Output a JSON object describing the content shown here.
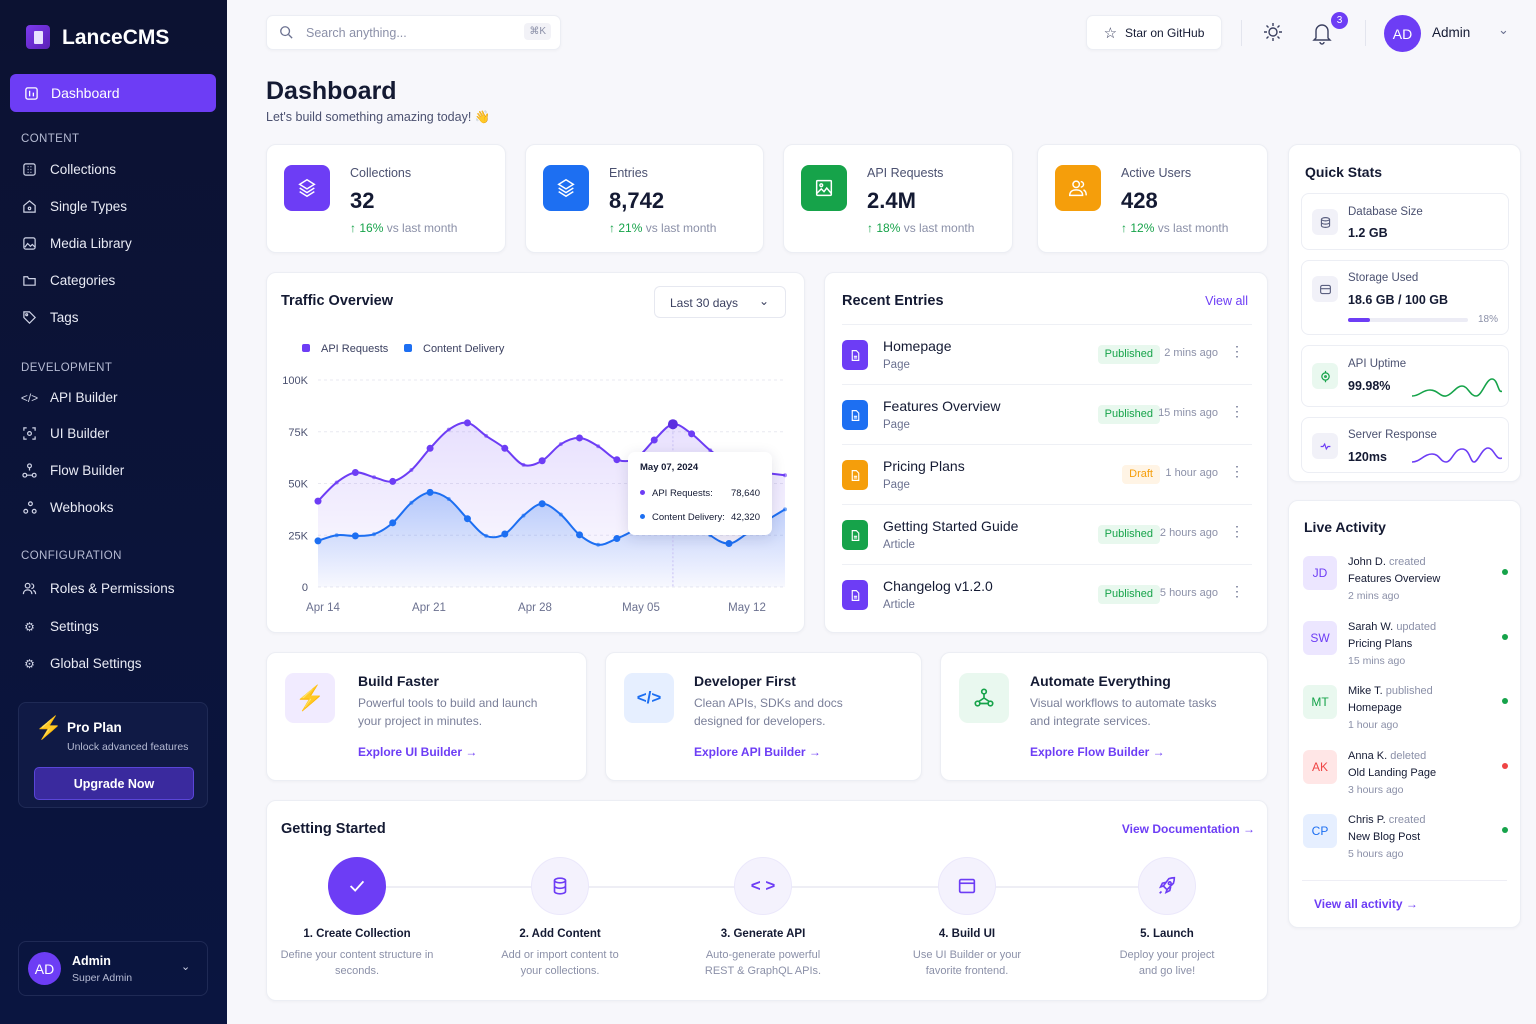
{
  "brand": "LanceCMS",
  "sidebar": {
    "active": "Dashboard",
    "sections": [
      {
        "title": "CONTENT",
        "items": [
          "Collections",
          "Single Types",
          "Media Library",
          "Categories",
          "Tags"
        ]
      },
      {
        "title": "DEVELOPMENT",
        "items": [
          "API Builder",
          "UI Builder",
          "Flow Builder",
          "Webhooks"
        ]
      },
      {
        "title": "CONFIGURATION",
        "items": [
          "Roles & Permissions",
          "Settings",
          "Global Settings"
        ]
      }
    ],
    "pro": {
      "title": "Pro Plan",
      "subtitle": "Unlock advanced features",
      "button": "Upgrade Now"
    },
    "user": {
      "initials": "AD",
      "name": "Admin",
      "role": "Super Admin"
    }
  },
  "header": {
    "search_placeholder": "Search anything...",
    "shortcut": "⌘K",
    "github": "Star on GitHub",
    "notifications": "3",
    "user_initials": "AD",
    "user_name": "Admin"
  },
  "page": {
    "title": "Dashboard",
    "subtitle": "Let's build something amazing today! 👋"
  },
  "stats": [
    {
      "label": "Collections",
      "value": "32",
      "change": "16%",
      "suffix": "vs last month",
      "color": "#6d3df5"
    },
    {
      "label": "Entries",
      "value": "8,742",
      "change": "21%",
      "suffix": "vs last month",
      "color": "#1d6ff2"
    },
    {
      "label": "API Requests",
      "value": "2.4M",
      "change": "18%",
      "suffix": "vs last month",
      "color": "#16a34a"
    },
    {
      "label": "Active Users",
      "value": "428",
      "change": "12%",
      "suffix": "vs last month",
      "color": "#f59e0b"
    }
  ],
  "traffic": {
    "title": "Traffic Overview",
    "range": "Last 30 days"
  },
  "chart_data": {
    "type": "area",
    "title": "Traffic Overview",
    "legend": [
      "API Requests",
      "Content Delivery"
    ],
    "legend_position": "top-left",
    "xticks": [
      "Apr 14",
      "Apr 21",
      "Apr 28",
      "May 05",
      "May 12"
    ],
    "yticks": [
      "0",
      "25K",
      "50K",
      "75K",
      "100K"
    ],
    "ylim": [
      0,
      100000
    ],
    "grid": true,
    "series": [
      {
        "name": "API Requests",
        "color": "#6d3df5",
        "values": [
          41500,
          50500,
          55300,
          53000,
          51000,
          56500,
          67000,
          76000,
          79300,
          73000,
          67000,
          59000,
          61000,
          69000,
          72000,
          68000,
          61500,
          62000,
          71000,
          78640,
          74000,
          66000,
          60000,
          56000,
          55000,
          54000
        ]
      },
      {
        "name": "Content Delivery",
        "color": "#1d6ff2",
        "values": [
          22300,
          25000,
          24700,
          25500,
          31000,
          40700,
          45700,
          42500,
          33000,
          24700,
          25600,
          34500,
          40200,
          35000,
          25200,
          20400,
          23400,
          28000,
          35000,
          42320,
          34000,
          25000,
          21000,
          26000,
          32000,
          37500
        ]
      }
    ],
    "tooltip": {
      "date": "May 07, 2024",
      "rows": [
        {
          "label": "API Requests:",
          "value": "78,640"
        },
        {
          "label": "Content Delivery:",
          "value": "42,320"
        }
      ]
    }
  },
  "recent": {
    "title": "Recent Entries",
    "view_all": "View all",
    "items": [
      {
        "title": "Homepage",
        "type": "Page",
        "status": "Published",
        "time": "2 mins ago",
        "color": "#6d3df5"
      },
      {
        "title": "Features Overview",
        "type": "Page",
        "status": "Published",
        "time": "15 mins ago",
        "color": "#1d6ff2"
      },
      {
        "title": "Pricing Plans",
        "type": "Page",
        "status": "Draft",
        "time": "1 hour ago",
        "color": "#f59e0b"
      },
      {
        "title": "Getting Started Guide",
        "type": "Article",
        "status": "Published",
        "time": "2 hours ago",
        "color": "#16a34a"
      },
      {
        "title": "Changelog v1.2.0",
        "type": "Article",
        "status": "Published",
        "time": "5 hours ago",
        "color": "#6d3df5"
      }
    ]
  },
  "quick_stats": {
    "title": "Quick Stats",
    "items": [
      {
        "label": "Database Size",
        "value": "1.2 GB"
      },
      {
        "label": "Storage Used",
        "value": "18.6 GB / 100 GB",
        "percent": "18%",
        "progress": 0.18
      },
      {
        "label": "API Uptime",
        "value": "99.98%"
      },
      {
        "label": "Server Response",
        "value": "120ms"
      }
    ]
  },
  "features": [
    {
      "title": "Build Faster",
      "desc": "Powerful tools to build and launch your project in minutes.",
      "link": "Explore UI Builder →"
    },
    {
      "title": "Developer First",
      "desc": "Clean APIs, SDKs and docs designed for developers.",
      "link": "Explore API Builder →"
    },
    {
      "title": "Automate Everything",
      "desc": "Visual workflows to automate tasks and integrate services.",
      "link": "Explore Flow Builder →"
    }
  ],
  "getting_started": {
    "title": "Getting Started",
    "link": "View Documentation →",
    "steps": [
      {
        "title": "1. Create Collection",
        "desc": "Define your content structure in seconds."
      },
      {
        "title": "2. Add Content",
        "desc": "Add or import content to your collections."
      },
      {
        "title": "3. Generate API",
        "desc": "Auto-generate powerful REST & GraphQL APIs."
      },
      {
        "title": "4. Build UI",
        "desc": "Use UI Builder or your favorite frontend."
      },
      {
        "title": "5. Launch",
        "desc": "Deploy your project and go live!"
      }
    ]
  },
  "activity": {
    "title": "Live Activity",
    "view_all": "View all activity →",
    "items": [
      {
        "initials": "JD",
        "user": "John D.",
        "action": "created",
        "target": "Features Overview",
        "time": "2 mins ago",
        "status_color": "#16a34a"
      },
      {
        "initials": "SW",
        "user": "Sarah W.",
        "action": "updated",
        "target": "Pricing Plans",
        "time": "15 mins ago",
        "status_color": "#16a34a"
      },
      {
        "initials": "MT",
        "user": "Mike T.",
        "action": "published",
        "target": "Homepage",
        "time": "1 hour ago",
        "status_color": "#16a34a"
      },
      {
        "initials": "AK",
        "user": "Anna K.",
        "action": "deleted",
        "target": "Old Landing Page",
        "time": "3 hours ago",
        "status_color": "#ef4444"
      },
      {
        "initials": "CP",
        "user": "Chris P.",
        "action": "created",
        "target": "New Blog Post",
        "time": "5 hours ago",
        "status_color": "#16a34a"
      }
    ]
  }
}
